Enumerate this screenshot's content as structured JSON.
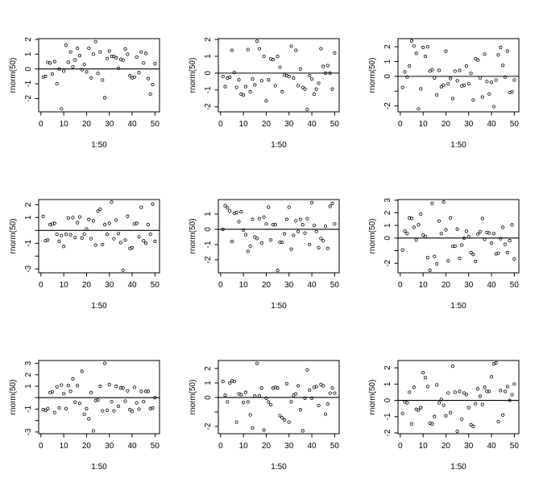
{
  "page": {
    "background": "#ffffff",
    "foreground": "#000000"
  },
  "chart_data": [
    {
      "type": "scatter",
      "title": "",
      "xlabel": "1:50",
      "ylabel": "rnorm(50)",
      "marker": "open-circle",
      "grid": false,
      "hline": 0,
      "x_start": 1,
      "x_end": 50,
      "xlim": [
        -1,
        52
      ],
      "xticks": [
        0,
        10,
        20,
        30,
        40,
        50
      ],
      "ylim": [
        -2.9,
        2.05
      ],
      "yticks": [
        -2,
        -1,
        0,
        1,
        2
      ],
      "ytick_labels": [
        "-2",
        "-1",
        "0",
        "1",
        "2"
      ],
      "y": [
        -0.55,
        -0.5,
        0.45,
        0.4,
        -0.35,
        0.5,
        -1.0,
        0.0,
        -2.7,
        -0.15,
        1.6,
        0.45,
        1.15,
        0.15,
        0.6,
        1.4,
        0.9,
        -0.05,
        0.3,
        -0.2,
        1.4,
        -0.6,
        1.0,
        1.85,
        -0.3,
        1.15,
        -0.75,
        -1.95,
        0.7,
        1.2,
        0.85,
        0.85,
        0.75,
        0.05,
        0.65,
        0.6,
        1.35,
        1.0,
        -0.45,
        -0.6,
        -0.55,
        0.8,
        -0.25,
        1.15,
        0.4,
        1.05,
        -0.65,
        -1.7,
        -1.05,
        0.35
      ]
    },
    {
      "type": "scatter",
      "title": "",
      "xlabel": "1:50",
      "ylabel": "rnorm(50)",
      "marker": "open-circle",
      "grid": false,
      "hline": 0,
      "x_start": 1,
      "x_end": 50,
      "xlim": [
        -1,
        52
      ],
      "xticks": [
        0,
        10,
        20,
        30,
        40,
        50
      ],
      "ylim": [
        -2.3,
        2.05
      ],
      "yticks": [
        -2,
        -1,
        0,
        1,
        2
      ],
      "ytick_labels": [
        "-2",
        "-1",
        "0",
        "1",
        "2"
      ],
      "y": [
        -0.2,
        -0.8,
        -0.3,
        -0.25,
        1.35,
        0.05,
        -0.85,
        -0.4,
        -1.25,
        -1.3,
        -0.8,
        1.4,
        -1.1,
        -0.35,
        -0.7,
        1.9,
        1.45,
        -0.45,
        1.0,
        -1.65,
        -0.4,
        0.85,
        0.8,
        -0.75,
        1.0,
        0.35,
        -1.1,
        -0.1,
        -0.15,
        -0.2,
        1.6,
        -0.3,
        1.35,
        -0.75,
        0.25,
        -0.85,
        -0.95,
        -2.15,
        -0.15,
        -0.35,
        -1.25,
        -0.95,
        -0.6,
        1.45,
        0.4,
        0.0,
        0.45,
        0.0,
        -0.95,
        1.2
      ]
    },
    {
      "type": "scatter",
      "title": "",
      "xlabel": "1:50",
      "ylabel": "rnorm(50)",
      "marker": "open-circle",
      "grid": false,
      "hline": 0,
      "x_start": 1,
      "x_end": 50,
      "xlim": [
        -1,
        52
      ],
      "xticks": [
        0,
        10,
        20,
        30,
        40,
        50
      ],
      "ylim": [
        -2.4,
        2.55
      ],
      "yticks": [
        -2,
        -1,
        0,
        1,
        2
      ],
      "ytick_labels": [
        "-2",
        "",
        "0",
        "1",
        "2"
      ],
      "y": [
        -0.75,
        0.3,
        -0.05,
        0.7,
        2.4,
        2.05,
        1.55,
        -2.2,
        -0.85,
        1.95,
        1.35,
        2.0,
        0.35,
        0.45,
        -0.1,
        -1.25,
        0.4,
        -0.7,
        -0.6,
        1.7,
        -0.5,
        -0.15,
        -1.5,
        0.35,
        -0.3,
        0.4,
        -0.65,
        -0.6,
        0.7,
        -0.5,
        0.2,
        -1.6,
        1.2,
        1.1,
        -0.1,
        -1.4,
        1.5,
        -0.35,
        -1.2,
        -0.4,
        -2.05,
        -0.25,
        1.45,
        1.95,
        0.75,
        -0.05,
        1.7,
        -1.1,
        -1.05,
        -0.25
      ]
    },
    {
      "type": "scatter",
      "title": "",
      "xlabel": "1:50",
      "ylabel": "rnorm(50)",
      "marker": "open-circle",
      "grid": false,
      "hline": 0,
      "x_start": 1,
      "x_end": 50,
      "xlim": [
        -1,
        52
      ],
      "xticks": [
        0,
        10,
        20,
        30,
        40,
        50
      ],
      "ylim": [
        -3.3,
        2.4
      ],
      "yticks": [
        -3,
        -2,
        -1,
        0,
        1,
        2
      ],
      "ytick_labels": [
        "-3",
        "",
        "-1",
        "",
        "1",
        "2"
      ],
      "y": [
        1.1,
        -0.8,
        -0.75,
        0.45,
        0.5,
        0.55,
        -0.3,
        -0.85,
        -0.4,
        -1.25,
        -0.3,
        0.95,
        -0.35,
        1.0,
        -0.55,
        0.6,
        1.05,
        -0.6,
        -0.3,
        0.1,
        0.85,
        -0.65,
        0.75,
        -1.15,
        1.5,
        1.65,
        -1.1,
        0.45,
        -0.3,
        0.55,
        2.2,
        -0.65,
        0.8,
        -0.25,
        -0.95,
        -3.1,
        -0.75,
        1.1,
        -1.4,
        -1.35,
        0.5,
        0.55,
        -0.5,
        1.8,
        -0.8,
        -1.0,
        0.45,
        -0.3,
        2.05,
        -0.85
      ]
    },
    {
      "type": "scatter",
      "title": "",
      "xlabel": "1:50",
      "ylabel": "rnorm(50)",
      "marker": "open-circle",
      "grid": false,
      "hline": 0,
      "x_start": 1,
      "x_end": 50,
      "xlim": [
        -1,
        52
      ],
      "xticks": [
        0,
        10,
        20,
        30,
        40,
        50
      ],
      "ylim": [
        -2.85,
        1.95
      ],
      "yticks": [
        -2,
        -1,
        0,
        1
      ],
      "ytick_labels": [
        "-2",
        "-1",
        "0",
        "1"
      ],
      "y": [
        0.0,
        1.55,
        1.4,
        1.2,
        -0.8,
        1.05,
        1.1,
        0.5,
        1.15,
        -0.05,
        -0.35,
        -1.45,
        -1.1,
        0.65,
        -0.5,
        -0.6,
        0.7,
        -0.9,
        0.8,
        0.35,
        1.45,
        -0.7,
        0.3,
        0.3,
        -2.7,
        -0.85,
        -0.85,
        -0.3,
        0.65,
        1.45,
        -1.3,
        -0.4,
        0.55,
        -0.15,
        0.65,
        0.3,
        -0.25,
        0.7,
        -1.0,
        1.75,
        0.25,
        -0.15,
        -1.2,
        -0.6,
        -0.75,
        0.2,
        -1.25,
        1.5,
        1.7,
        0.35
      ]
    },
    {
      "type": "scatter",
      "title": "",
      "xlabel": "1:50",
      "ylabel": "rnorm(50)",
      "marker": "open-circle",
      "grid": false,
      "hline": 0,
      "x_start": 1,
      "x_end": 50,
      "xlim": [
        -1,
        52
      ],
      "xticks": [
        0,
        10,
        20,
        30,
        40,
        50
      ],
      "ylim": [
        -2.75,
        3.05
      ],
      "yticks": [
        -2,
        -1,
        0,
        1,
        2,
        3
      ],
      "ytick_labels": [
        "-2",
        "",
        "0",
        "1",
        "2",
        "3"
      ],
      "y": [
        -0.95,
        0.55,
        0.35,
        1.6,
        1.55,
        0.85,
        -0.15,
        1.05,
        1.9,
        0.25,
        0.1,
        -1.55,
        -2.55,
        2.75,
        -1.45,
        -2.05,
        1.35,
        0.35,
        2.85,
        0.65,
        -1.8,
        1.6,
        -0.65,
        -0.65,
        0.7,
        -1.6,
        -0.55,
        0.0,
        0.55,
        0.1,
        -1.15,
        -1.3,
        -1.85,
        0.3,
        0.5,
        1.55,
        -0.1,
        0.45,
        0.4,
        -0.4,
        0.35,
        -1.25,
        -1.2,
        -0.05,
        0.85,
        -0.5,
        -1.15,
        -0.2,
        1.05,
        -1.65
      ]
    },
    {
      "type": "scatter",
      "title": "",
      "xlabel": "1:50",
      "ylabel": "rnorm(50)",
      "marker": "open-circle",
      "grid": false,
      "hline": 0,
      "x_start": 1,
      "x_end": 50,
      "xlim": [
        -1,
        52
      ],
      "xticks": [
        0,
        10,
        20,
        30,
        40,
        50
      ],
      "ylim": [
        -3.15,
        3.25
      ],
      "yticks": [
        -3,
        -2,
        -1,
        0,
        1,
        2,
        3
      ],
      "ytick_labels": [
        "-3",
        "",
        "-1",
        "",
        "1",
        "2",
        "3"
      ],
      "y": [
        -1.05,
        -1.1,
        -0.95,
        0.45,
        0.5,
        -1.3,
        0.95,
        -0.9,
        1.1,
        0.35,
        -0.95,
        1.05,
        0.55,
        1.65,
        -0.4,
        1.05,
        -0.5,
        2.3,
        -1.45,
        -0.95,
        -1.85,
        0.45,
        -2.9,
        -0.25,
        -0.2,
        1.0,
        -1.15,
        3.0,
        -1.1,
        1.15,
        -0.35,
        -1.15,
        1.0,
        -0.75,
        0.85,
        0.85,
        -0.3,
        0.6,
        -1.05,
        -1.2,
        0.9,
        -0.45,
        -1.0,
        0.55,
        -0.35,
        0.55,
        0.55,
        -0.95,
        -0.9,
        0.0
      ]
    },
    {
      "type": "scatter",
      "title": "",
      "xlabel": "1:50",
      "ylabel": "rnorm(50)",
      "marker": "open-circle",
      "grid": false,
      "hline": 0,
      "x_start": 1,
      "x_end": 50,
      "xlim": [
        -1,
        52
      ],
      "xticks": [
        0,
        10,
        20,
        30,
        40,
        50
      ],
      "ylim": [
        -2.5,
        2.55
      ],
      "yticks": [
        -2,
        -1,
        0,
        1,
        2
      ],
      "ytick_labels": [
        "-2",
        "",
        "0",
        "1",
        "2"
      ],
      "y": [
        1.1,
        0.15,
        -0.3,
        1.0,
        1.15,
        1.1,
        -1.7,
        0.25,
        0.2,
        -0.35,
        0.35,
        -0.3,
        -1.2,
        -2.1,
        0.1,
        2.35,
        0.1,
        0.65,
        -2.25,
        -0.05,
        -0.3,
        -0.5,
        0.65,
        0.7,
        0.65,
        -1.25,
        -1.4,
        -1.55,
        0.95,
        -1.7,
        -0.3,
        0.15,
        0.25,
        0.8,
        -0.85,
        -2.3,
        -0.05,
        1.9,
        0.5,
        -0.05,
        0.7,
        0.75,
        -0.55,
        0.9,
        0.8,
        -1.15,
        -0.45,
        0.3,
        0.65,
        0.3
      ]
    },
    {
      "type": "scatter",
      "title": "",
      "xlabel": "1:50",
      "ylabel": "rnorm(50)",
      "marker": "open-circle",
      "grid": false,
      "hline": 0,
      "x_start": 1,
      "x_end": 50,
      "xlim": [
        -1,
        52
      ],
      "xticks": [
        0,
        10,
        20,
        30,
        40,
        50
      ],
      "ylim": [
        -2.05,
        2.45
      ],
      "yticks": [
        -2,
        -1,
        0,
        1,
        2
      ],
      "ytick_labels": [
        "-2",
        "-1",
        "0",
        "1",
        "2"
      ],
      "y": [
        -0.8,
        -0.1,
        -0.15,
        0.5,
        -1.45,
        0.8,
        -0.55,
        -0.6,
        -0.45,
        1.7,
        1.4,
        0.85,
        -1.4,
        -1.45,
        -1.0,
        0.95,
        -0.15,
        0.05,
        -0.3,
        -0.95,
        0.45,
        -0.75,
        2.1,
        0.5,
        -1.9,
        0.55,
        -1.15,
        0.45,
        0.35,
        -0.45,
        -1.5,
        -1.6,
        -0.2,
        0.7,
        0.25,
        -0.25,
        0.8,
        0.55,
        0.55,
        1.45,
        2.25,
        2.3,
        -1.3,
        0.6,
        -0.9,
        0.55,
        0.85,
        0.0,
        0.35,
        1.0
      ]
    }
  ]
}
